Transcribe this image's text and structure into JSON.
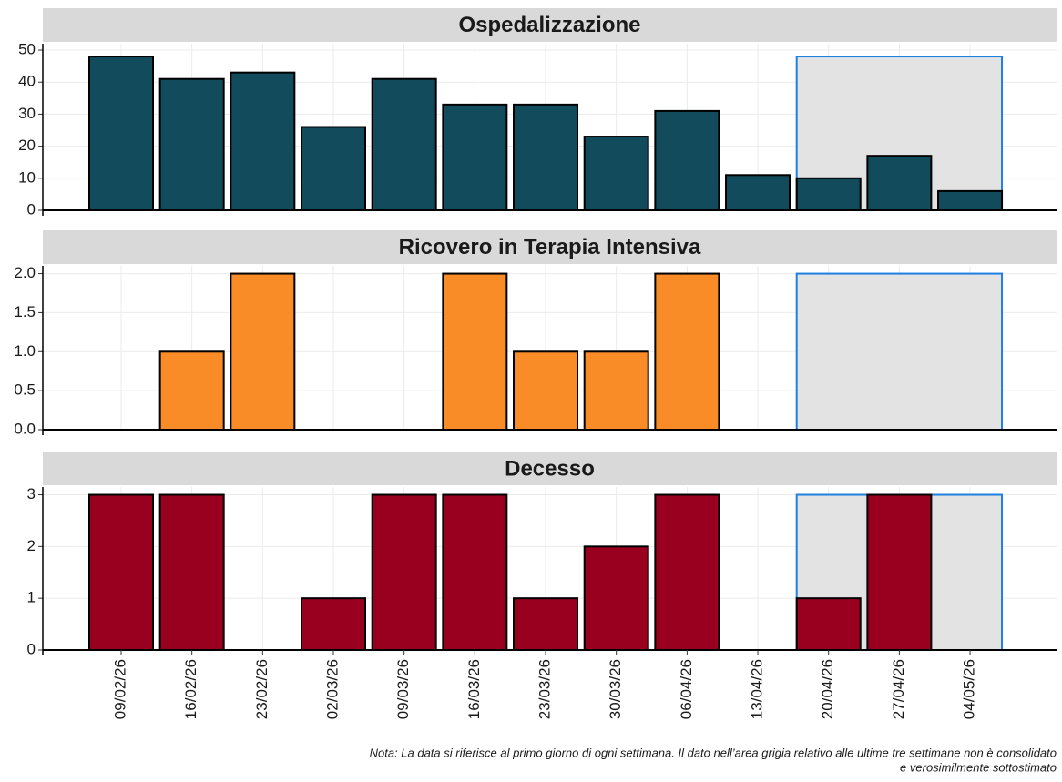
{
  "chart_data": [
    {
      "type": "bar",
      "title": "Ospedalizzazione",
      "values": [
        48,
        41,
        43,
        26,
        41,
        33,
        33,
        23,
        31,
        11,
        10,
        17,
        6
      ],
      "color": "#124c5c",
      "ylim": [
        0,
        52
      ],
      "yticks": [
        0,
        10,
        20,
        30,
        40,
        50
      ],
      "grid": true,
      "highlight_range": [
        "20/04/26",
        "04/05/26"
      ],
      "highlight_color": "#1f80e0"
    },
    {
      "type": "bar",
      "title": "Ricovero in Terapia Intensiva",
      "values": [
        0,
        1,
        2,
        0,
        0,
        2,
        1,
        1,
        2,
        0,
        0,
        0,
        0
      ],
      "color": "#fa8c28",
      "ylim": [
        0,
        2.1
      ],
      "yticks": [
        {
          "value": 0,
          "label": "0.0"
        },
        0.5,
        {
          "value": 1,
          "label": "1.0"
        },
        1.5,
        {
          "value": 2,
          "label": "2.0"
        }
      ],
      "grid": true,
      "highlight_range": [
        "20/04/26",
        "04/05/26"
      ],
      "highlight_color": "#1f80e0"
    },
    {
      "type": "bar",
      "title": "Decesso",
      "values": [
        3,
        3,
        0,
        1,
        3,
        3,
        1,
        2,
        3,
        0,
        1,
        3,
        0
      ],
      "color": "#990020",
      "categories": [
        "09/02/26",
        "16/02/26",
        "23/02/26",
        "02/03/26",
        "09/03/26",
        "16/03/26",
        "23/03/26",
        "30/03/26",
        "06/04/26",
        "13/04/26",
        "20/04/26",
        "27/04/26",
        "04/05/26"
      ],
      "ylim": [
        0,
        3.15
      ],
      "yticks": [
        0,
        1,
        2,
        3
      ],
      "grid": true,
      "highlight_range": [
        "20/04/26",
        "04/05/26"
      ],
      "highlight_color": "#1f80e0"
    }
  ],
  "note": [
    "Nota: La data si riferisce al primo giorno di ogni settimana. Il dato nell’area grigia relativo alle ultime tre settimane non è consolidato",
    "e verosimilmente sottostimato"
  ]
}
